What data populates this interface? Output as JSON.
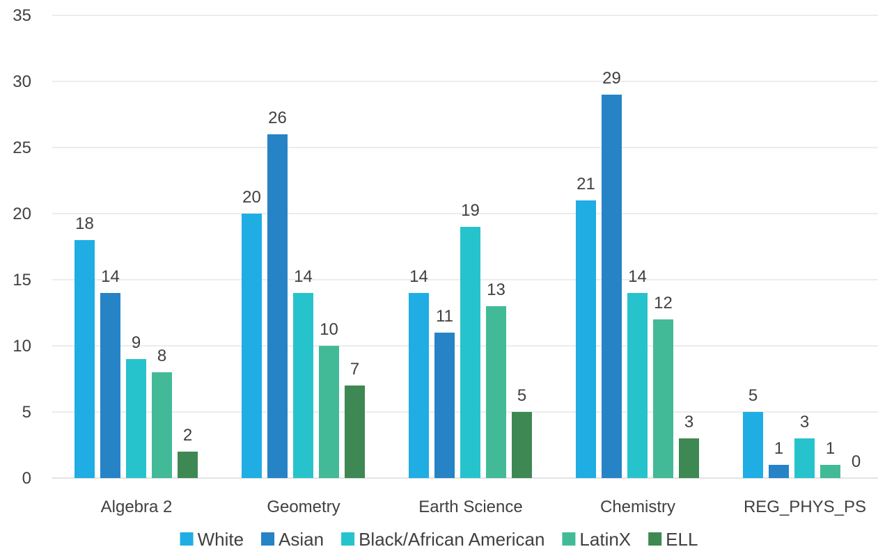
{
  "chart_data": {
    "type": "bar",
    "title": "",
    "xlabel": "",
    "ylabel": "",
    "ylim": [
      0,
      35
    ],
    "y_ticks": [
      0,
      5,
      10,
      15,
      20,
      25,
      30,
      35
    ],
    "grid": true,
    "legend_position": "bottom",
    "categories": [
      "Algebra 2",
      "Geometry",
      "Earth Science",
      "Chemistry",
      "REG_PHYS_PS"
    ],
    "series": [
      {
        "name": "White",
        "color": "#1FADE4",
        "values": [
          18,
          20,
          14,
          21,
          5
        ]
      },
      {
        "name": "Asian",
        "color": "#2683C6",
        "values": [
          14,
          26,
          11,
          29,
          1
        ]
      },
      {
        "name": "Black/African American",
        "color": "#27C3CD",
        "values": [
          9,
          14,
          19,
          14,
          3
        ]
      },
      {
        "name": "LatinX",
        "color": "#42BA97",
        "values": [
          8,
          10,
          13,
          12,
          1
        ]
      },
      {
        "name": "ELL",
        "color": "#3E8853",
        "values": [
          2,
          7,
          5,
          3,
          0
        ]
      }
    ]
  }
}
